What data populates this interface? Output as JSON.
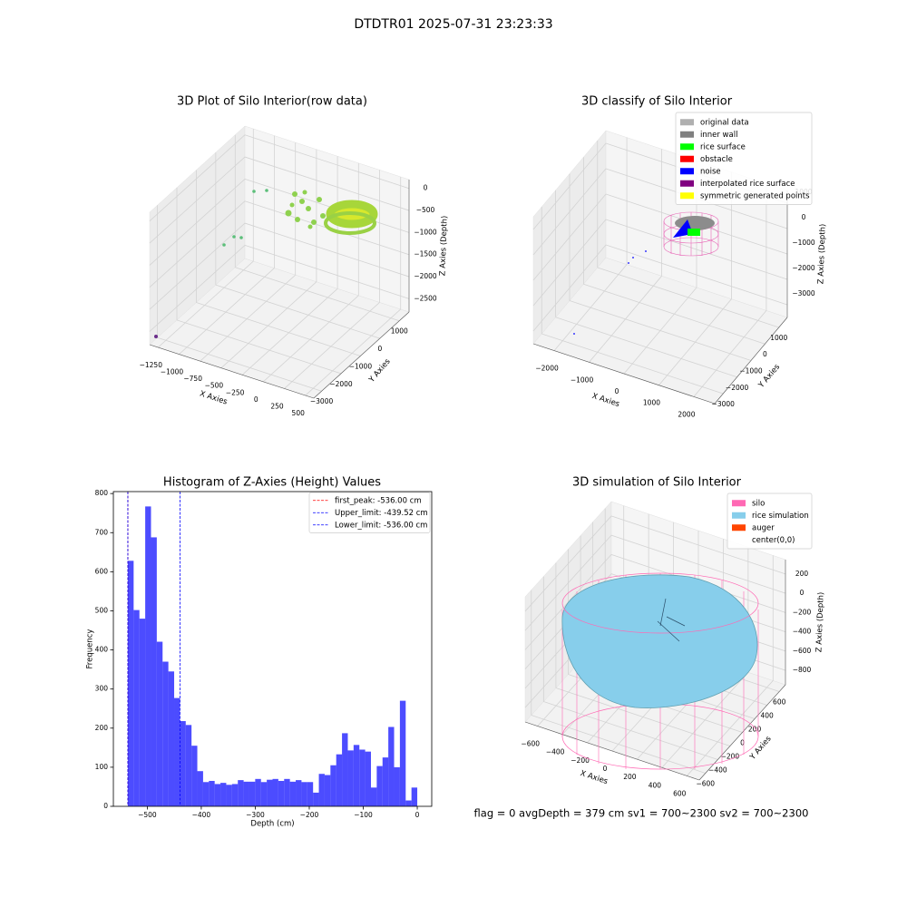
{
  "title": "DTDTR01 2025-07-31 23:23:33",
  "footer": "flag = 0     avgDepth = 379 cm  sv1 = 700~2300  sv2 = 700~2300",
  "chart_data": [
    {
      "type": "scatter3d",
      "title": "3D Plot of Silo Interior(row data)",
      "xlabel": "X Axies",
      "ylabel": "Y Axies",
      "zlabel": "Z Axies (Depth)",
      "xlim": [
        -1350,
        600
      ],
      "ylim": [
        -3400,
        1500
      ],
      "zlim": [
        -2800,
        200
      ],
      "xticks": [
        {
          "value": -1250,
          "label": "−1250"
        },
        {
          "value": -1000,
          "label": "−1000"
        },
        {
          "value": -750,
          "label": "−750"
        },
        {
          "value": -500,
          "label": "−500"
        },
        {
          "value": -250,
          "label": "−250"
        },
        0,
        250,
        500
      ],
      "yticks": [
        {
          "value": -3000,
          "label": "−3000"
        },
        {
          "value": -2000,
          "label": "−2000"
        },
        {
          "value": -1000,
          "label": "−1000"
        },
        0,
        1000
      ],
      "zticks": [
        0,
        {
          "value": -500,
          "label": "−500"
        },
        {
          "value": -1000,
          "label": "−1000"
        },
        {
          "value": -1500,
          "label": "−1500"
        },
        {
          "value": -2000,
          "label": "−2000"
        },
        {
          "value": -2500,
          "label": "−2500"
        }
      ],
      "grid": true
    },
    {
      "type": "scatter3d",
      "title": "3D classify of Silo Interior",
      "xlabel": "X Axies",
      "ylabel": "Y Axies",
      "zlabel": "Z Axies (Depth)",
      "xlim": [
        -2600,
        2600
      ],
      "ylim": [
        -3600,
        1600
      ],
      "zlim": [
        -3500,
        1500
      ],
      "xticks": [
        {
          "value": -2000,
          "label": "−2000"
        },
        {
          "value": -1000,
          "label": "−1000"
        },
        0,
        1000,
        2000
      ],
      "yticks": [
        {
          "value": -3000,
          "label": "−3000"
        },
        {
          "value": -2000,
          "label": "−2000"
        },
        {
          "value": -1000,
          "label": "−1000"
        },
        0,
        1000
      ],
      "zticks": [
        1000,
        0,
        {
          "value": -1000,
          "label": "−1000"
        },
        {
          "value": -2000,
          "label": "−2000"
        },
        {
          "value": -3000,
          "label": "−3000"
        }
      ],
      "grid": true,
      "legend": {
        "loc": "upper right",
        "entries": [
          {
            "name": "original data",
            "color": "#b0b0b0"
          },
          {
            "name": "inner wall",
            "color": "#808080"
          },
          {
            "name": "rice surface",
            "color": "#00ff00"
          },
          {
            "name": "obstacle",
            "color": "#ff0000"
          },
          {
            "name": "noise",
            "color": "#0000ff"
          },
          {
            "name": "interpolated rice surface",
            "color": "#800080"
          },
          {
            "name": "symmetric generated points",
            "color": "#ffff00"
          }
        ]
      }
    },
    {
      "type": "histogram",
      "title": "Histogram of Z-Axies (Height) Values",
      "xlabel": "Depth (cm)",
      "ylabel": "Frequency",
      "color": "#0000ff",
      "bins": [
        -536,
        -525.28,
        -514.56,
        -503.84,
        -493.12,
        -482.4,
        -471.68,
        -460.96,
        -450.24,
        -439.52,
        -428.8,
        -418.08,
        -407.36,
        -396.64,
        -385.92,
        -375.2,
        -364.48,
        -353.76,
        -343.04,
        -332.32,
        -321.6,
        -310.88,
        -300.16,
        -289.44,
        -278.72,
        -268,
        -257.28,
        -246.56,
        -235.84,
        -225.12,
        -214.4,
        -203.68,
        -192.96,
        -182.24,
        -171.52,
        -160.8,
        -150.08,
        -139.36,
        -128.64,
        -117.92,
        -107.2,
        -96.48,
        -85.76,
        -75.04,
        -64.32,
        -53.6,
        -42.88,
        -32.16,
        -21.44,
        -10.72,
        0
      ],
      "counts": [
        628,
        502,
        480,
        767,
        688,
        421,
        370,
        345,
        277,
        218,
        208,
        155,
        90,
        62,
        65,
        57,
        60,
        55,
        57,
        67,
        63,
        63,
        70,
        62,
        68,
        70,
        65,
        70,
        63,
        67,
        62,
        62,
        35,
        83,
        80,
        105,
        133,
        187,
        143,
        157,
        145,
        140,
        48,
        103,
        125,
        203,
        100,
        270,
        15,
        48
      ],
      "xlim": [
        -562.8,
        26.8
      ],
      "ylim": [
        0,
        805
      ],
      "xticks": [
        {
          "value": -500,
          "label": "−500"
        },
        {
          "value": -400,
          "label": "−400"
        },
        {
          "value": -300,
          "label": "−300"
        },
        {
          "value": -200,
          "label": "−200"
        },
        {
          "value": -100,
          "label": "−100"
        },
        0
      ],
      "yticks": [
        0,
        100,
        200,
        300,
        400,
        500,
        600,
        700,
        800
      ],
      "vlines": [
        {
          "label": "first_peak: -536.00 cm",
          "value": -536,
          "color": "#ff0000"
        },
        {
          "label": "Upper_limit: -439.52 cm",
          "value": -439.52,
          "color": "#0000ff"
        },
        {
          "label": "Lower_limit: -536.00 cm",
          "value": -536,
          "color": "#0000ff"
        }
      ],
      "legend": "upper right"
    },
    {
      "type": "surface3d",
      "title": "3D simulation of Silo Interior",
      "xlabel": "X Axies",
      "ylabel": "Y Axies",
      "zlabel": "Z Axies (Depth)",
      "xlim": [
        -700,
        700
      ],
      "ylim": [
        -700,
        700
      ],
      "zlim": [
        -950,
        350
      ],
      "xticks": [
        {
          "value": -600,
          "label": "−600"
        },
        {
          "value": -400,
          "label": "−400"
        },
        {
          "value": -200,
          "label": "−200"
        },
        0,
        200,
        400,
        600
      ],
      "yticks": [
        {
          "value": -600,
          "label": "−600"
        },
        {
          "value": -400,
          "label": "−400"
        },
        {
          "value": -200,
          "label": "−200"
        },
        0,
        200,
        400,
        600
      ],
      "zticks": [
        200,
        0,
        {
          "value": -200,
          "label": "−200"
        },
        {
          "value": -400,
          "label": "−400"
        },
        {
          "value": -600,
          "label": "−600"
        },
        {
          "value": -800,
          "label": "−800"
        }
      ],
      "grid": true,
      "legend": {
        "loc": "upper right",
        "entries": [
          {
            "name": "silo",
            "color": "#ff69b4"
          },
          {
            "name": "rice simulation",
            "color": "#87ceeb"
          },
          {
            "name": "auger",
            "color": "#ff4500"
          },
          {
            "name": "center(0,0)"
          }
        ]
      }
    }
  ]
}
